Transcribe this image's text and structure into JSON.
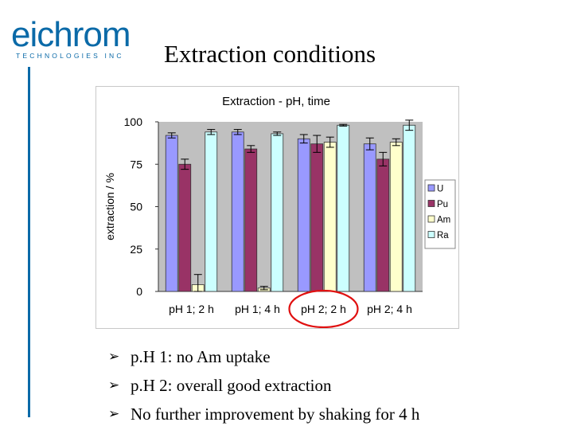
{
  "logo": {
    "word": "eichrom",
    "subtitle": "TECHNOLOGIES    INC"
  },
  "slide": {
    "title": "Extraction conditions",
    "bullets": [
      "p.H 1: no Am uptake",
      "p.H 2: overall good extraction",
      "No further improvement by shaking for 4 h"
    ],
    "bullet_icon": "arrow-bullet-icon"
  },
  "highlight": {
    "category": "pH 2; 2 h",
    "color": "#e01010"
  },
  "chart_data": {
    "type": "bar",
    "title": "Extraction  - pH, time",
    "ylabel": "extraction / %",
    "xlabel": "",
    "ylim": [
      0,
      100
    ],
    "yticks": [
      0,
      25,
      50,
      75,
      100
    ],
    "categories": [
      "pH 1; 2 h",
      "pH 1; 4 h",
      "pH 2; 2 h",
      "pH 2; 4 h"
    ],
    "legend_position": "right",
    "grid": false,
    "series": [
      {
        "name": "U",
        "color": "#9999ff",
        "values": [
          92,
          94,
          90,
          87
        ],
        "errors": [
          1.5,
          1.5,
          2.5,
          3.5
        ]
      },
      {
        "name": "Pu",
        "color": "#993366",
        "values": [
          75,
          84,
          87,
          78
        ],
        "errors": [
          3,
          2,
          5,
          4
        ]
      },
      {
        "name": "Am",
        "color": "#ffffcc",
        "values": [
          4,
          2,
          88,
          88
        ],
        "errors": [
          6,
          1,
          3,
          2
        ]
      },
      {
        "name": "Ra",
        "color": "#ccffff",
        "values": [
          94,
          93,
          98,
          98
        ],
        "errors": [
          1.5,
          1,
          0.5,
          3
        ]
      }
    ]
  }
}
